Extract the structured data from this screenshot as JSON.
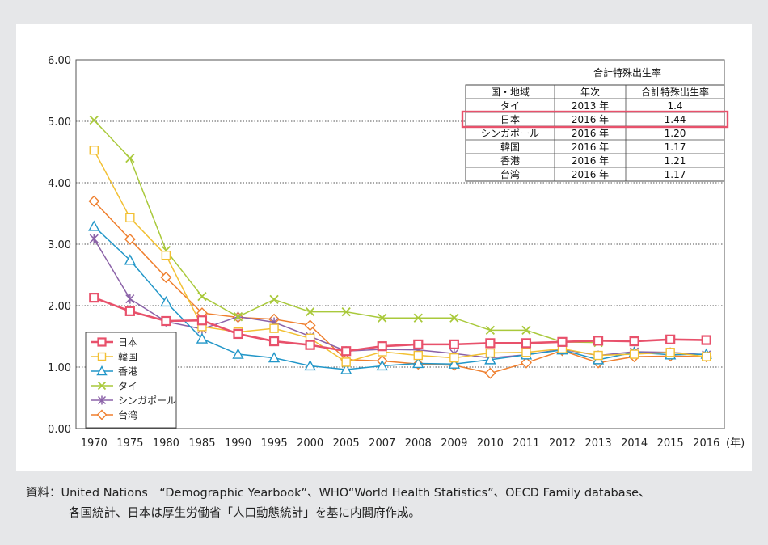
{
  "chart_data": {
    "type": "line",
    "title": "",
    "xlabel": "",
    "x_unit": "(年)",
    "ylabel": "",
    "ylim": [
      0,
      6
    ],
    "y_ticks": [
      "0.00",
      "1.00",
      "2.00",
      "3.00",
      "4.00",
      "5.00",
      "6.00"
    ],
    "grid": "horizontal-dotted",
    "categories": [
      "1970",
      "1975",
      "1980",
      "1985",
      "1990",
      "1995",
      "2000",
      "2005",
      "2007",
      "2008",
      "2009",
      "2010",
      "2011",
      "2012",
      "2013",
      "2014",
      "2015",
      "2016"
    ],
    "series": [
      {
        "name": "日本",
        "color": "#e8516b",
        "marker": "square",
        "values": [
          2.13,
          1.91,
          1.75,
          1.76,
          1.54,
          1.42,
          1.36,
          1.26,
          1.34,
          1.37,
          1.37,
          1.39,
          1.39,
          1.41,
          1.43,
          1.42,
          1.45,
          1.44
        ]
      },
      {
        "name": "韓国",
        "color": "#f2c033",
        "marker": "open-square",
        "values": [
          4.53,
          3.43,
          2.82,
          1.66,
          1.57,
          1.63,
          1.47,
          1.08,
          1.25,
          1.19,
          1.15,
          1.23,
          1.24,
          1.3,
          1.19,
          1.21,
          1.24,
          1.17
        ]
      },
      {
        "name": "香港",
        "color": "#2196c8",
        "marker": "triangle",
        "values": [
          3.29,
          2.74,
          2.06,
          1.46,
          1.21,
          1.15,
          1.02,
          0.96,
          1.02,
          1.06,
          1.05,
          1.12,
          1.2,
          1.28,
          1.12,
          1.24,
          1.2,
          1.21
        ]
      },
      {
        "name": "タイ",
        "color": "#a9c93b",
        "marker": "x",
        "values": [
          5.02,
          4.4,
          2.9,
          2.15,
          1.82,
          2.1,
          1.9,
          1.9,
          1.8,
          1.8,
          1.8,
          1.6,
          1.6,
          1.41,
          1.4,
          null,
          null,
          null
        ]
      },
      {
        "name": "シンガポール",
        "color": "#8b62a8",
        "marker": "star",
        "values": [
          3.09,
          2.11,
          1.74,
          1.62,
          1.82,
          1.73,
          1.5,
          1.26,
          1.29,
          1.28,
          1.22,
          1.15,
          1.2,
          1.29,
          1.19,
          1.25,
          1.24,
          1.2
        ]
      },
      {
        "name": "台湾",
        "color": "#ef7f2e",
        "marker": "diamond",
        "values": [
          3.7,
          3.08,
          2.46,
          1.88,
          1.81,
          1.78,
          1.68,
          1.12,
          1.1,
          1.05,
          1.03,
          0.9,
          1.07,
          1.27,
          1.07,
          1.17,
          1.18,
          1.17
        ]
      }
    ],
    "legend_position": "lower-left",
    "inset_table": {
      "title": "合計特殊出生率",
      "headers": [
        "国・地域",
        "年次",
        "合計特殊出生率"
      ],
      "rows": [
        [
          "タイ",
          "2013 年",
          "1.4"
        ],
        [
          "日本",
          "2016 年",
          "1.44"
        ],
        [
          "シンガポール",
          "2016 年",
          "1.20"
        ],
        [
          "韓国",
          "2016 年",
          "1.17"
        ],
        [
          "香港",
          "2016 年",
          "1.21"
        ],
        [
          "台湾",
          "2016 年",
          "1.17"
        ]
      ],
      "highlight_row": 1,
      "highlight_color": "#e8516b"
    }
  },
  "source_note": {
    "line1": "資料：United Nations　“Demographic Yearbook”、WHO“World Health Statistics”、OECD Family database、",
    "line2": "各国統計、日本は厚生労働省「人口動態統計」を基に内閣府作成。"
  }
}
